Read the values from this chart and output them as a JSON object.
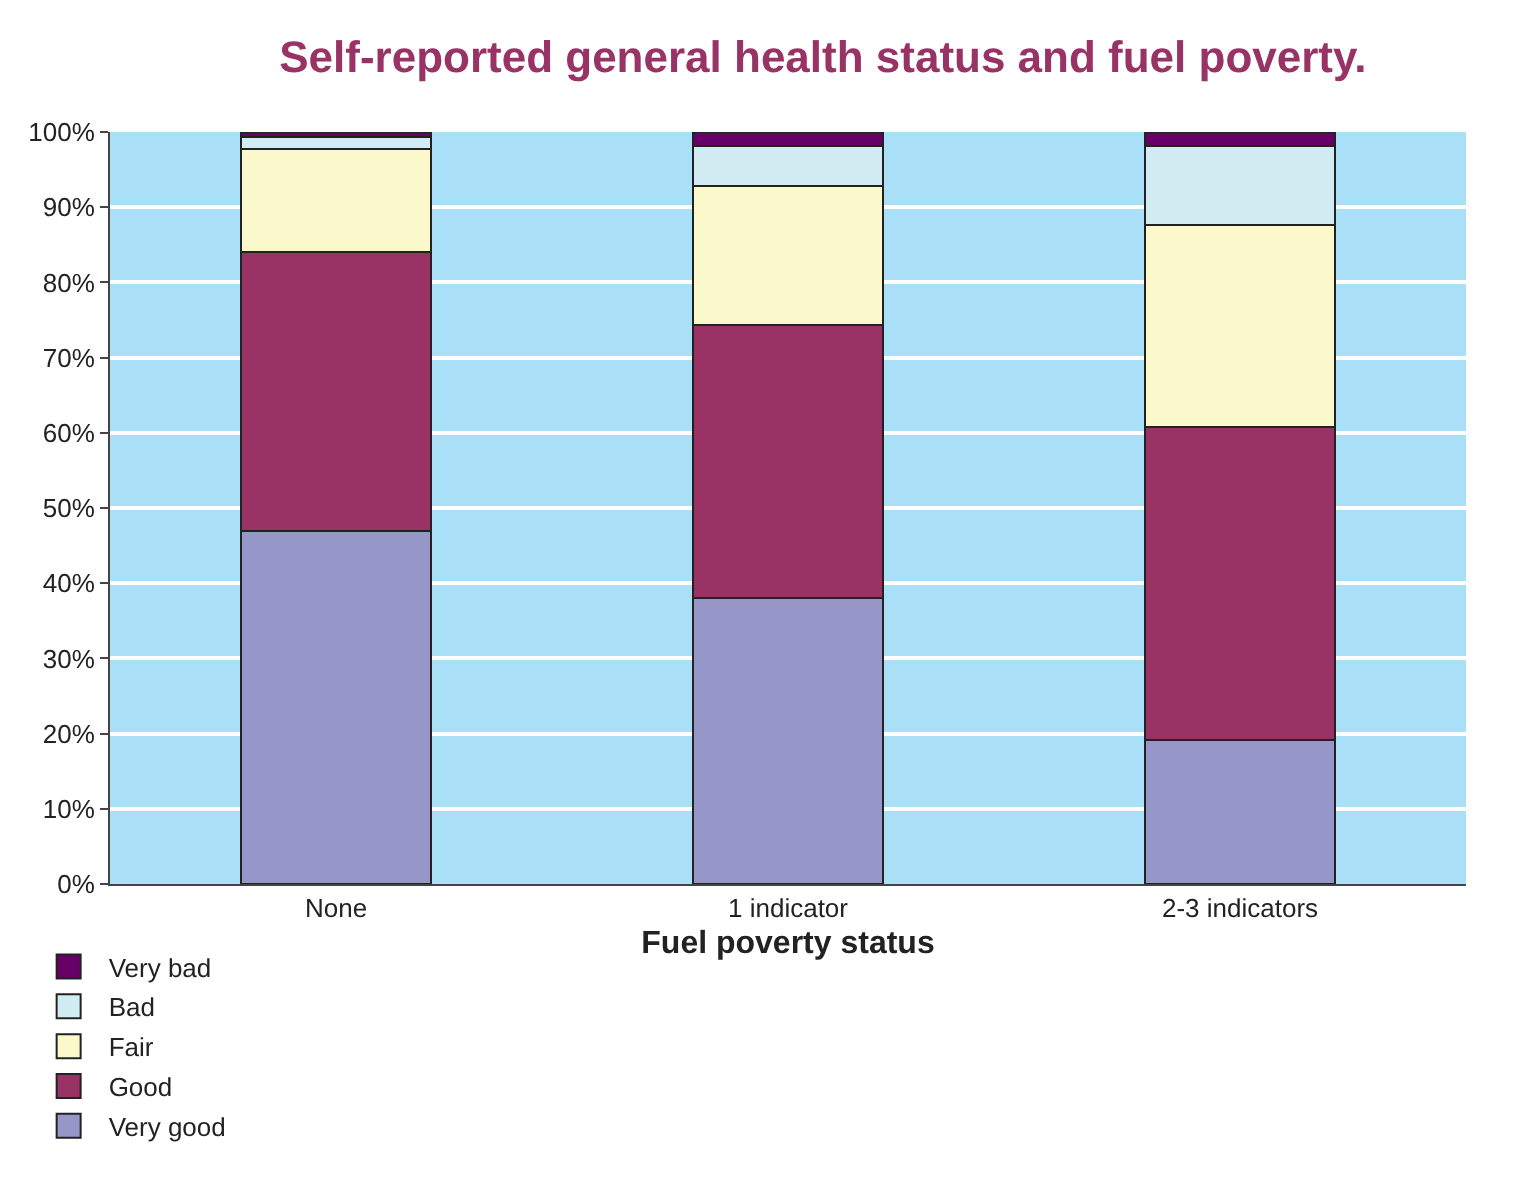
{
  "chart_data": {
    "type": "bar",
    "title": "Self-reported general health status and fuel poverty.",
    "xlabel": "Fuel poverty status",
    "categories": [
      "None",
      "1 indicator",
      "2-3 indicators"
    ],
    "stacked": true,
    "series": [
      {
        "name": "Very good",
        "color": "#9696c8",
        "values": [
          47,
          38,
          19.1
        ]
      },
      {
        "name": "Good",
        "color": "#993366",
        "values": [
          37,
          36.3,
          41.7
        ]
      },
      {
        "name": "Fair",
        "color": "#fbf8cc",
        "values": [
          13.7,
          18.5,
          26.8
        ]
      },
      {
        "name": "Bad",
        "color": "#d1ecf3",
        "values": [
          1.7,
          5.4,
          10.6
        ]
      },
      {
        "name": "Very bad",
        "color": "#660066",
        "values": [
          0.6,
          1.8,
          1.8
        ]
      }
    ],
    "ylim": [
      0,
      100
    ],
    "yticks": [
      {
        "value": 0,
        "label": "0%"
      },
      {
        "value": 10,
        "label": "10%"
      },
      {
        "value": 20,
        "label": "20%"
      },
      {
        "value": 30,
        "label": "30%"
      },
      {
        "value": 40,
        "label": "40%"
      },
      {
        "value": 50,
        "label": "50%"
      },
      {
        "value": 60,
        "label": "60%"
      },
      {
        "value": 70,
        "label": "70%"
      },
      {
        "value": 80,
        "label": "80%"
      },
      {
        "value": 90,
        "label": "90%"
      },
      {
        "value": 100,
        "label": "100%"
      }
    ],
    "grid": "y",
    "legend": "bottom left"
  }
}
